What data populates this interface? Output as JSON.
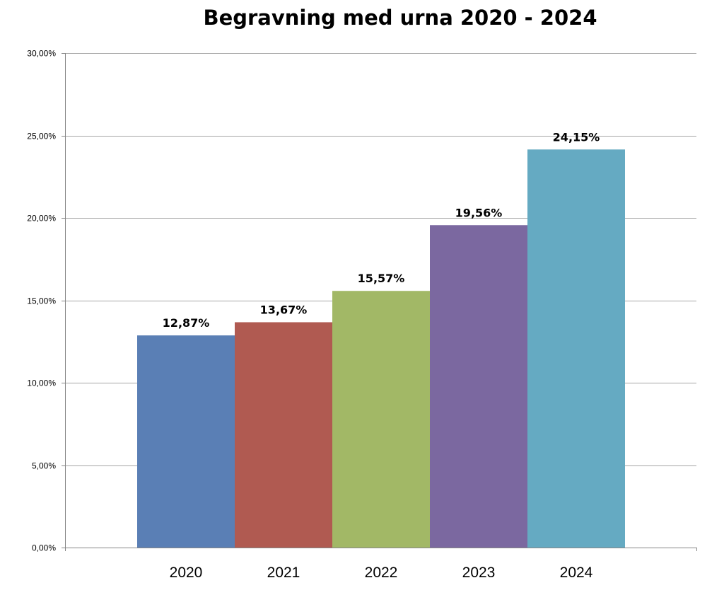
{
  "chart_data": {
    "type": "bar",
    "title": "Begravning med urna 2020 - 2024",
    "categories": [
      "2020",
      "2021",
      "2022",
      "2023",
      "2024"
    ],
    "values": [
      12.87,
      13.67,
      15.57,
      19.56,
      24.15
    ],
    "data_labels": [
      "12,87%",
      "13,67%",
      "15,57%",
      "19,56%",
      "24,15%"
    ],
    "bar_colors": [
      "#5A7FB5",
      "#B05A51",
      "#A2B866",
      "#7B68A0",
      "#65AAC2"
    ],
    "yticks": [
      0,
      5,
      10,
      15,
      20,
      25,
      30
    ],
    "ytick_labels": [
      "0,00%",
      "5,00%",
      "10,00%",
      "15,00%",
      "20,00%",
      "25,00%",
      "30,00%"
    ],
    "ylim": [
      0,
      30
    ],
    "grid": true,
    "legend": "none",
    "xlabel": "",
    "ylabel": ""
  }
}
